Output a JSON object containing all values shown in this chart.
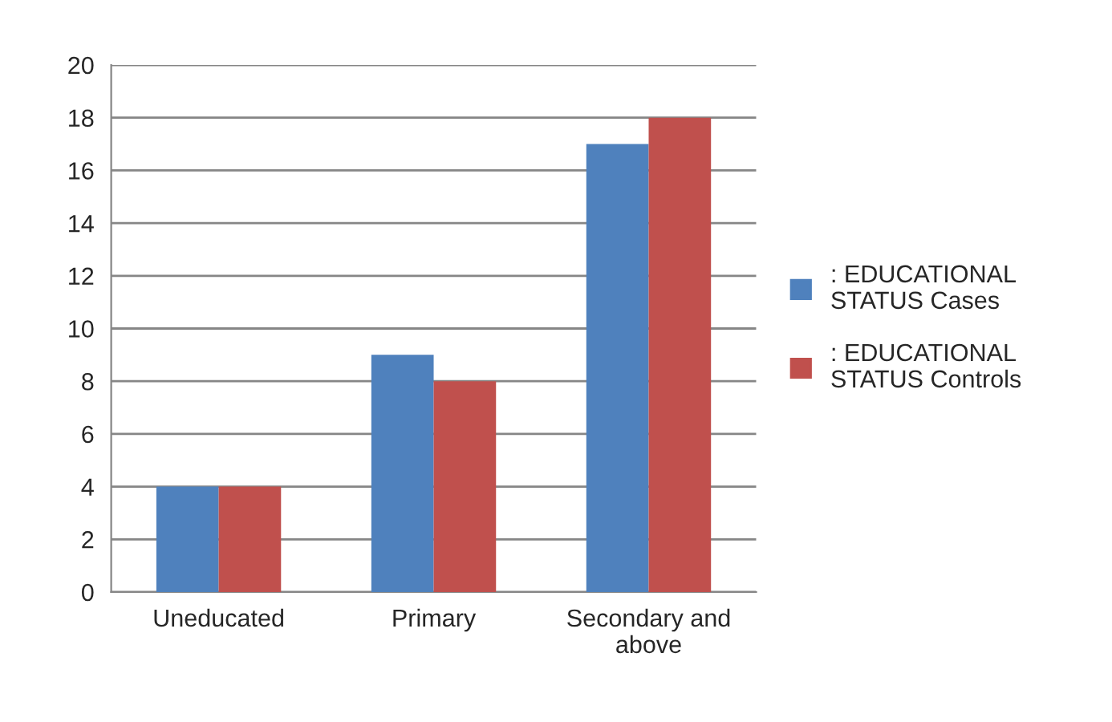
{
  "chart_data": {
    "type": "bar",
    "categories": [
      "Uneducated",
      "Primary",
      "Secondary and\nabove"
    ],
    "series": [
      {
        "name": ": EDUCATIONAL\nSTATUS Cases",
        "color": "#4f81bd",
        "values": [
          4,
          9,
          17
        ]
      },
      {
        "name": ": EDUCATIONAL\nSTATUS Controls",
        "color": "#c0504d",
        "values": [
          4,
          8,
          18
        ]
      }
    ],
    "ylim": [
      0,
      20
    ],
    "yticks": [
      0,
      2,
      4,
      6,
      8,
      10,
      12,
      14,
      16,
      18,
      20
    ],
    "grid": "y",
    "legend": "right"
  }
}
